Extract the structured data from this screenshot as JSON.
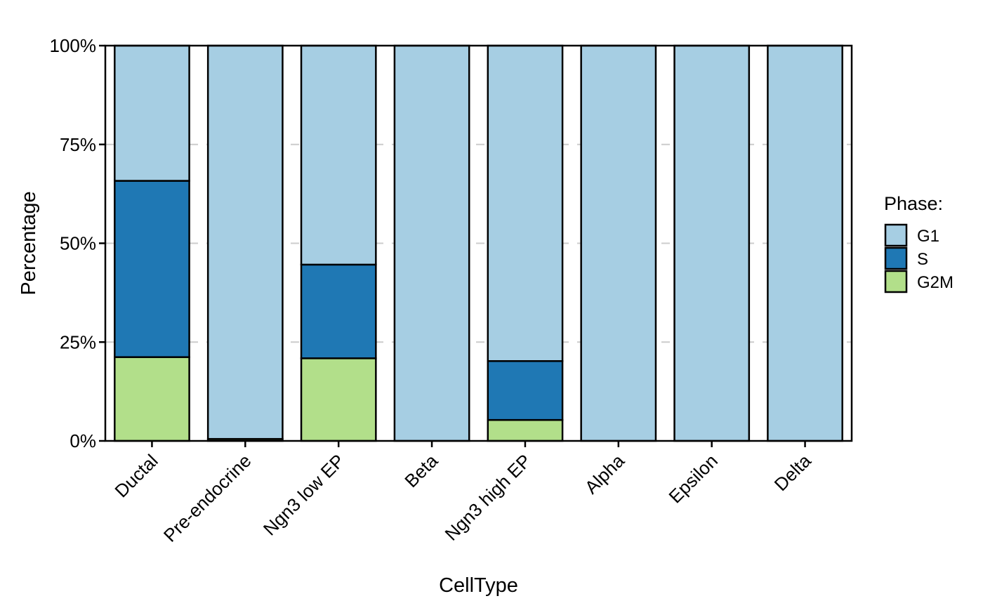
{
  "chart_data": {
    "type": "bar",
    "stacked": true,
    "xlabel": "CellType",
    "ylabel": "Percentage",
    "ylim": [
      0,
      100
    ],
    "yticks": [
      "0%",
      "25%",
      "50%",
      "75%",
      "100%"
    ],
    "ytick_values": [
      0,
      25,
      50,
      75,
      100
    ],
    "grid": "dashed horizontal",
    "categories": [
      "Ductal",
      "Pre-endocrine",
      "Ngn3 low EP",
      "Beta",
      "Ngn3 high EP",
      "Alpha",
      "Epsilon",
      "Delta"
    ],
    "series": [
      {
        "name": "G2M",
        "color": "#b2df8a",
        "values": [
          21.2,
          0.5,
          20.9,
          0,
          5.3,
          0,
          0,
          0
        ]
      },
      {
        "name": "S",
        "color": "#1f78b4",
        "values": [
          44.6,
          0,
          23.7,
          0,
          14.9,
          0,
          0,
          0
        ]
      },
      {
        "name": "G1",
        "color": "#a6cee3",
        "values": [
          34.2,
          99.5,
          55.4,
          100,
          79.8,
          100,
          100,
          100
        ]
      }
    ],
    "legend": {
      "title": "Phase:",
      "position": "right",
      "items": [
        {
          "label": "G1",
          "color": "#a6cee3"
        },
        {
          "label": "S",
          "color": "#1f78b4"
        },
        {
          "label": "G2M",
          "color": "#b2df8a"
        }
      ]
    }
  }
}
